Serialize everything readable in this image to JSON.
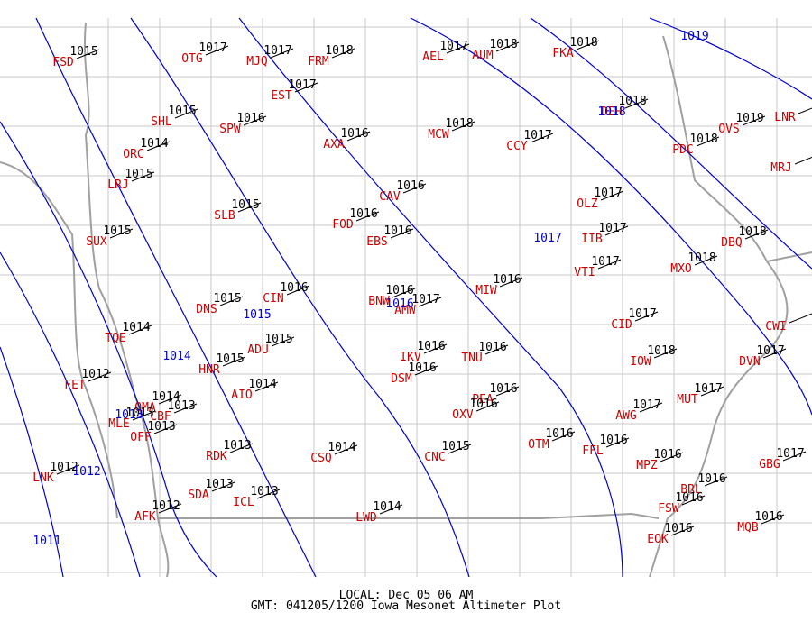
{
  "stations": [
    {
      "id": "FSD",
      "altimeter": 1015
    },
    {
      "id": "OTG",
      "altimeter": 1017
    },
    {
      "id": "MJQ",
      "altimeter": 1017
    },
    {
      "id": "FRM",
      "altimeter": 1018
    },
    {
      "id": "AEL",
      "altimeter": 1017
    },
    {
      "id": "AUM",
      "altimeter": 1018
    },
    {
      "id": "FKA",
      "altimeter": 1018
    },
    {
      "id": "EST",
      "altimeter": 1017
    },
    {
      "id": "SHL",
      "altimeter": 1015
    },
    {
      "id": "SPW",
      "altimeter": 1016
    },
    {
      "id": "AXA",
      "altimeter": 1016
    },
    {
      "id": "MCW",
      "altimeter": 1018
    },
    {
      "id": "CCY",
      "altimeter": 1017
    },
    {
      "id": "DEH",
      "altimeter": 1018
    },
    {
      "id": "ORC",
      "altimeter": 1014
    },
    {
      "id": "PDC",
      "altimeter": 1018
    },
    {
      "id": "OVS",
      "altimeter": 1019
    },
    {
      "id": "LNR"
    },
    {
      "id": "MRJ"
    },
    {
      "id": "LRJ",
      "altimeter": 1015
    },
    {
      "id": "CAV",
      "altimeter": 1016
    },
    {
      "id": "OLZ",
      "altimeter": 1017
    },
    {
      "id": "SLB",
      "altimeter": 1015
    },
    {
      "id": "FOD",
      "altimeter": 1016
    },
    {
      "id": "EBS",
      "altimeter": 1016
    },
    {
      "id": "IIB",
      "altimeter": 1017
    },
    {
      "id": "DBQ",
      "altimeter": 1018
    },
    {
      "id": "SUX",
      "altimeter": 1015
    },
    {
      "id": "VTI",
      "altimeter": 1017
    },
    {
      "id": "MXO",
      "altimeter": 1018
    },
    {
      "id": "MIW",
      "altimeter": 1016
    },
    {
      "id": "CIN",
      "altimeter": 1016
    },
    {
      "id": "DNS",
      "altimeter": 1015
    },
    {
      "id": "BNW",
      "altimeter": 1016
    },
    {
      "id": "AMW",
      "altimeter": 1017
    },
    {
      "id": "CID",
      "altimeter": 1017
    },
    {
      "id": "CWI"
    },
    {
      "id": "TQE",
      "altimeter": 1014
    },
    {
      "id": "ADU",
      "altimeter": 1015
    },
    {
      "id": "IKV",
      "altimeter": 1016
    },
    {
      "id": "TNU",
      "altimeter": 1016
    },
    {
      "id": "IOW",
      "altimeter": 1018
    },
    {
      "id": "DVN",
      "altimeter": 1017
    },
    {
      "id": "HNR",
      "altimeter": 1015
    },
    {
      "id": "DSM",
      "altimeter": 1016
    },
    {
      "id": "FET",
      "altimeter": 1012
    },
    {
      "id": "AIO",
      "altimeter": 1014
    },
    {
      "id": "OMA",
      "altimeter": 1014
    },
    {
      "id": "MUT",
      "altimeter": 1017
    },
    {
      "id": "PEA",
      "altimeter": 1016
    },
    {
      "id": "OXV",
      "altimeter": 1016
    },
    {
      "id": "CBF",
      "altimeter": 1013
    },
    {
      "id": "AWG",
      "altimeter": 1017
    },
    {
      "id": "MLE",
      "altimeter": 1013
    },
    {
      "id": "OFF",
      "altimeter": 1013
    },
    {
      "id": "OTM",
      "altimeter": 1016
    },
    {
      "id": "FFL",
      "altimeter": 1016
    },
    {
      "id": "RDK",
      "altimeter": 1013
    },
    {
      "id": "CSQ",
      "altimeter": 1014
    },
    {
      "id": "CNC",
      "altimeter": 1015
    },
    {
      "id": "MPZ",
      "altimeter": 1016
    },
    {
      "id": "GBG",
      "altimeter": 1017
    },
    {
      "id": "LNK",
      "altimeter": 1012
    },
    {
      "id": "SDA",
      "altimeter": 1013
    },
    {
      "id": "BRL",
      "altimeter": 1016
    },
    {
      "id": "ICL",
      "altimeter": 1013
    },
    {
      "id": "FSW",
      "altimeter": 1016
    },
    {
      "id": "AFK",
      "altimeter": 1012
    },
    {
      "id": "LWD",
      "altimeter": 1014
    },
    {
      "id": "EOK",
      "altimeter": 1016
    },
    {
      "id": "MQB",
      "altimeter": 1016
    }
  ],
  "isobar_labels": [
    1019,
    1018,
    1017,
    1016,
    1015,
    1014,
    1013,
    1012,
    1011
  ],
  "footer": {
    "local": "LOCAL: Dec 05 06 AM",
    "gmt": "GMT: 041205/1200 Iowa Mesonet Altimeter Plot"
  }
}
